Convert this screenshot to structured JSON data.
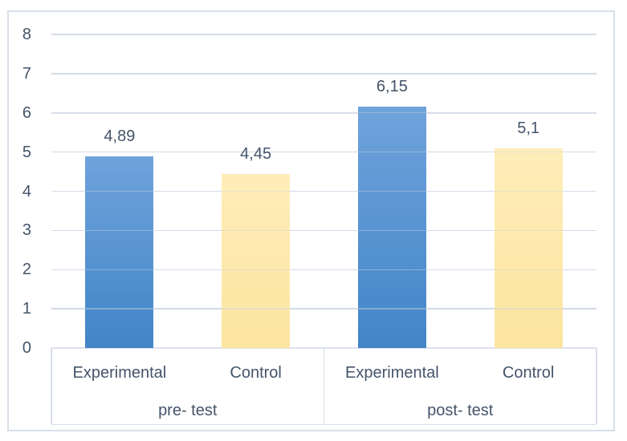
{
  "chart_data": {
    "type": "bar",
    "title": "",
    "xlabel": "",
    "ylabel": "",
    "ylim": [
      0,
      8
    ],
    "yticks": [
      0,
      1,
      2,
      3,
      4,
      5,
      6,
      7,
      8
    ],
    "grid": true,
    "legend": "none",
    "groups": [
      {
        "label": "pre- test",
        "bars": [
          {
            "category": "Experimental",
            "value": 4.89,
            "label": "4,89"
          },
          {
            "category": "Control",
            "value": 4.45,
            "label": "4,45"
          }
        ]
      },
      {
        "label": "post- test",
        "bars": [
          {
            "category": "Experimental",
            "value": 6.15,
            "label": "6,15"
          },
          {
            "category": "Control",
            "value": 5.1,
            "label": "5,1"
          }
        ]
      }
    ],
    "colors": {
      "experimental_top": "#6FA3DC",
      "experimental_bottom": "#4285C7",
      "control_top": "#FFEDB9",
      "control_bottom": "#FCE5A0",
      "gridline": "#DBE1EC",
      "gridline_overlay": "rgba(203,212,227,0.45)",
      "axis_text": "#44546A",
      "frame_border": "#D8DFE9",
      "box_line": "#D7DDE8"
    }
  }
}
